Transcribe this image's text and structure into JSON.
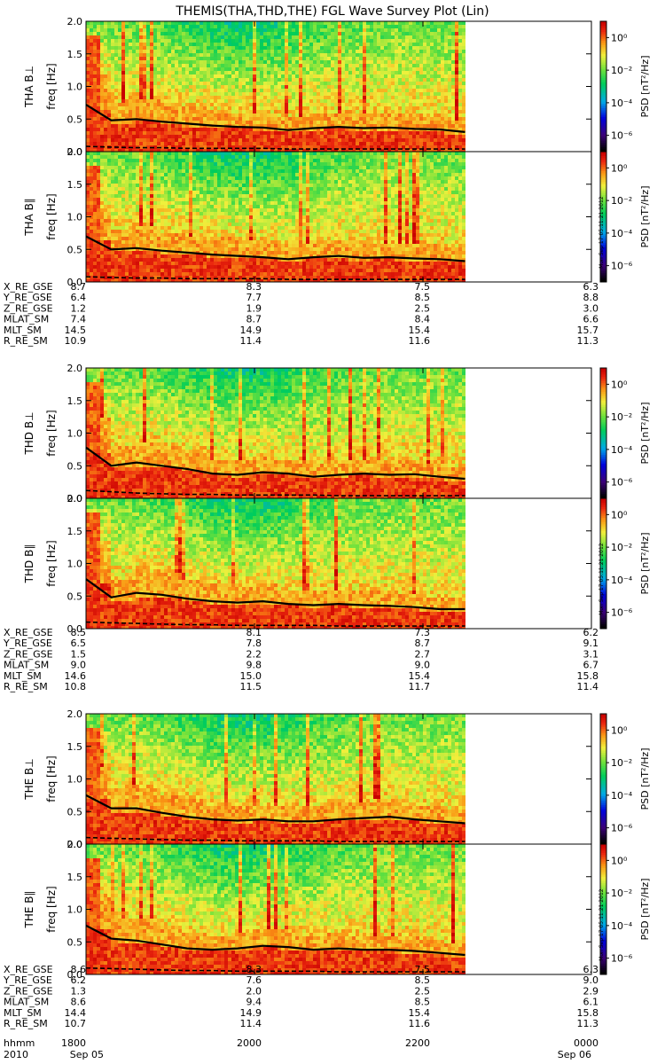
{
  "title": "THEMIS(THA,THD,THE) FGL Wave Survey Plot (Lin)",
  "stamp": "Mon Sep 17 05:11:21 2012",
  "colorbar": {
    "label": "PSD [nT²/Hz]",
    "tick_labels": [
      "10⁰",
      "10⁻²",
      "10⁻⁴",
      "10⁻⁶"
    ],
    "tick_exponents": [
      0,
      -2,
      -4,
      -6
    ],
    "range_exponent": [
      -7,
      1
    ]
  },
  "chart_data": [
    {
      "type": "heatmap",
      "probe": "THA",
      "panels": [
        {
          "ylabel": "THA B⊥",
          "yunit": "freq [Hz]",
          "yticks": [
            "0.0",
            "0.5",
            "1.0",
            "1.5",
            "2.0"
          ],
          "ylim": [
            0,
            2
          ],
          "line_solid": [
            0.72,
            0.48,
            0.5,
            0.46,
            0.43,
            0.4,
            0.38,
            0.37,
            0.33,
            0.36,
            0.38,
            0.36,
            0.37,
            0.35,
            0.34,
            0.3
          ],
          "line_dashed": [
            0.08,
            0.07,
            0.06,
            0.06,
            0.05,
            0.05,
            0.05,
            0.05,
            0.04,
            0.04,
            0.04,
            0.04,
            0.04,
            0.04,
            0.04,
            0.04
          ]
        },
        {
          "ylabel": "THA B∥",
          "yunit": "freq [Hz]",
          "yticks": [
            "0.0",
            "0.5",
            "1.0",
            "1.5",
            "2.0"
          ],
          "ylim": [
            0,
            2
          ],
          "line_solid": [
            0.7,
            0.5,
            0.52,
            0.48,
            0.45,
            0.42,
            0.4,
            0.38,
            0.35,
            0.38,
            0.4,
            0.37,
            0.38,
            0.36,
            0.35,
            0.32
          ],
          "line_dashed": [
            0.08,
            0.07,
            0.06,
            0.06,
            0.05,
            0.05,
            0.05,
            0.05,
            0.04,
            0.04,
            0.04,
            0.04,
            0.04,
            0.04,
            0.04,
            0.04
          ]
        }
      ],
      "ephemeris": [
        {
          "label": "X_RE_GSE",
          "values": [
            "8.7",
            "8.3",
            "7.5",
            "6.3"
          ]
        },
        {
          "label": "Y_RE_GSE",
          "values": [
            "6.4",
            "7.7",
            "8.5",
            "8.8"
          ]
        },
        {
          "label": "Z_RE_GSE",
          "values": [
            "1.2",
            "1.9",
            "2.5",
            "3.0"
          ]
        },
        {
          "label": "MLAT_SM",
          "values": [
            "7.4",
            "8.7",
            "8.4",
            "6.6"
          ]
        },
        {
          "label": "MLT_SM",
          "values": [
            "14.5",
            "14.9",
            "15.4",
            "15.7"
          ]
        },
        {
          "label": "R_RE_SM",
          "values": [
            "10.9",
            "11.4",
            "11.6",
            "11.3"
          ]
        }
      ]
    },
    {
      "type": "heatmap",
      "probe": "THD",
      "panels": [
        {
          "ylabel": "THD B⊥",
          "yunit": "freq [Hz]",
          "yticks": [
            "0.0",
            "0.5",
            "1.0",
            "1.5",
            "2.0"
          ],
          "ylim": [
            0,
            2
          ],
          "line_solid": [
            0.78,
            0.5,
            0.55,
            0.5,
            0.45,
            0.38,
            0.36,
            0.4,
            0.38,
            0.33,
            0.36,
            0.38,
            0.36,
            0.37,
            0.33,
            0.3
          ],
          "line_dashed": [
            0.12,
            0.1,
            0.08,
            0.07,
            0.06,
            0.06,
            0.05,
            0.05,
            0.05,
            0.05,
            0.04,
            0.04,
            0.04,
            0.04,
            0.04,
            0.04
          ]
        },
        {
          "ylabel": "THD B∥",
          "yunit": "freq [Hz]",
          "yticks": [
            "0.0",
            "0.5",
            "1.0",
            "1.5",
            "2.0"
          ],
          "ylim": [
            0,
            2
          ],
          "line_solid": [
            0.76,
            0.48,
            0.55,
            0.52,
            0.46,
            0.42,
            0.4,
            0.42,
            0.38,
            0.36,
            0.38,
            0.36,
            0.35,
            0.33,
            0.3,
            0.3
          ],
          "line_dashed": [
            0.1,
            0.09,
            0.08,
            0.07,
            0.06,
            0.06,
            0.05,
            0.05,
            0.05,
            0.05,
            0.04,
            0.04,
            0.04,
            0.04,
            0.04,
            0.04
          ]
        }
      ],
      "ephemeris": [
        {
          "label": "X_RE_GSE",
          "values": [
            "8.5",
            "8.1",
            "7.3",
            "6.2"
          ]
        },
        {
          "label": "Y_RE_GSE",
          "values": [
            "6.5",
            "7.8",
            "8.7",
            "9.1"
          ]
        },
        {
          "label": "Z_RE_GSE",
          "values": [
            "1.5",
            "2.2",
            "2.7",
            "3.1"
          ]
        },
        {
          "label": "MLAT_SM",
          "values": [
            "9.0",
            "9.8",
            "9.0",
            "6.7"
          ]
        },
        {
          "label": "MLT_SM",
          "values": [
            "14.6",
            "15.0",
            "15.4",
            "15.8"
          ]
        },
        {
          "label": "R_RE_SM",
          "values": [
            "10.8",
            "11.5",
            "11.7",
            "11.4"
          ]
        }
      ]
    },
    {
      "type": "heatmap",
      "probe": "THE",
      "panels": [
        {
          "ylabel": "THE B⊥",
          "yunit": "freq [Hz]",
          "yticks": [
            "0.0",
            "0.5",
            "1.0",
            "1.5",
            "2.0"
          ],
          "ylim": [
            0,
            2
          ],
          "line_solid": [
            0.75,
            0.55,
            0.55,
            0.48,
            0.42,
            0.38,
            0.36,
            0.38,
            0.35,
            0.35,
            0.38,
            0.4,
            0.42,
            0.38,
            0.35,
            0.32
          ],
          "line_dashed": [
            0.1,
            0.09,
            0.08,
            0.07,
            0.06,
            0.06,
            0.05,
            0.05,
            0.05,
            0.05,
            0.04,
            0.04,
            0.04,
            0.04,
            0.04,
            0.04
          ]
        },
        {
          "ylabel": "THE B∥",
          "yunit": "freq [Hz]",
          "yticks": [
            "0.0",
            "0.5",
            "1.0",
            "1.5",
            "2.0"
          ],
          "ylim": [
            0,
            2
          ],
          "line_solid": [
            0.75,
            0.55,
            0.52,
            0.46,
            0.4,
            0.38,
            0.4,
            0.44,
            0.42,
            0.38,
            0.4,
            0.38,
            0.38,
            0.36,
            0.33,
            0.3
          ],
          "line_dashed": [
            0.1,
            0.09,
            0.08,
            0.07,
            0.06,
            0.06,
            0.05,
            0.05,
            0.05,
            0.05,
            0.04,
            0.04,
            0.04,
            0.04,
            0.04,
            0.04
          ]
        }
      ],
      "ephemeris": [
        {
          "label": "X_RE_GSE",
          "values": [
            "8.6",
            "8.3",
            "7.5",
            "6.3"
          ]
        },
        {
          "label": "Y_RE_GSE",
          "values": [
            "6.2",
            "7.6",
            "8.5",
            "9.0"
          ]
        },
        {
          "label": "Z_RE_GSE",
          "values": [
            "1.3",
            "2.0",
            "2.5",
            "2.9"
          ]
        },
        {
          "label": "MLAT_SM",
          "values": [
            "8.6",
            "9.4",
            "8.5",
            "6.1"
          ]
        },
        {
          "label": "MLT_SM",
          "values": [
            "14.4",
            "14.9",
            "15.4",
            "15.8"
          ]
        },
        {
          "label": "R_RE_SM",
          "values": [
            "10.7",
            "11.4",
            "11.6",
            "11.3"
          ]
        }
      ]
    }
  ],
  "time_axis": {
    "row_hhmm": {
      "label": "hhmm",
      "values": [
        "1800",
        "2000",
        "2200",
        "0000"
      ]
    },
    "row_date": {
      "label": "2010",
      "values": [
        "Sep 05",
        "",
        "",
        "Sep 06"
      ]
    },
    "tick_hours": [
      18,
      20,
      22,
      24
    ],
    "data_end_hour": 22.5
  }
}
